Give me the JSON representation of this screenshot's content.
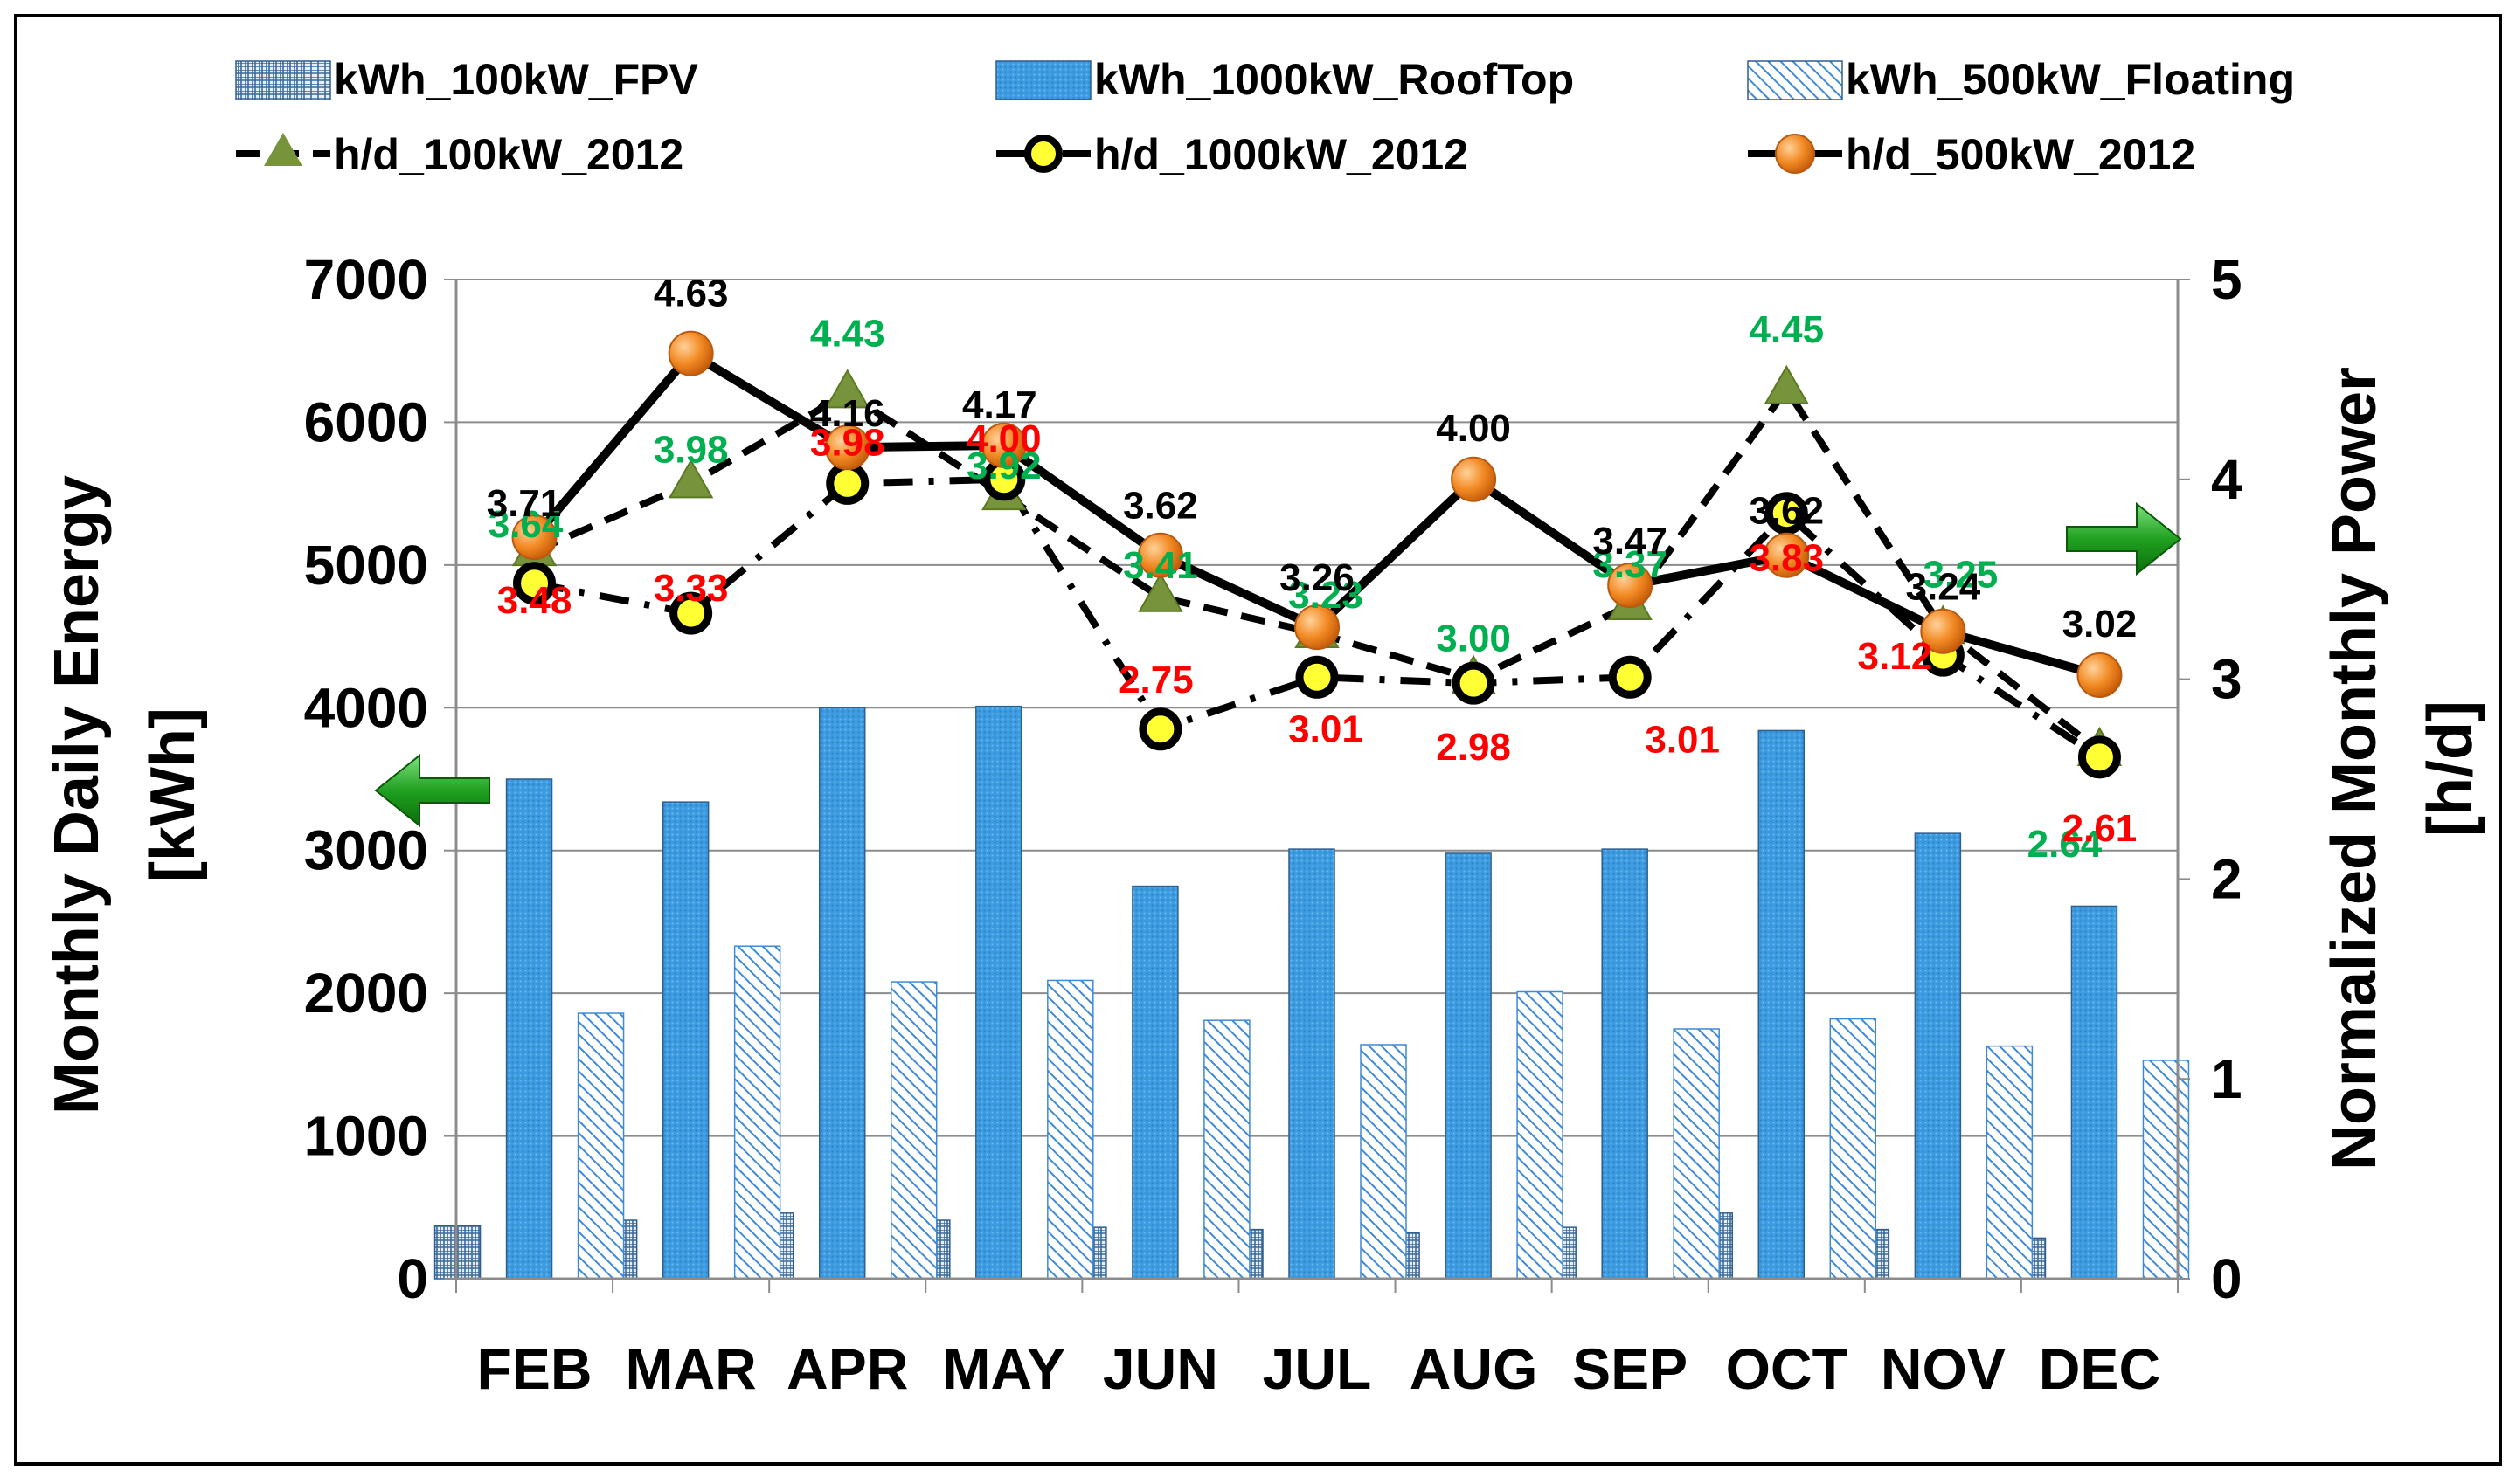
{
  "chart_data": {
    "type": "bar",
    "categories": [
      "FEB",
      "MAR",
      "APR",
      "MAY",
      "JUN",
      "JUL",
      "AUG",
      "SEP",
      "OCT",
      "NOV",
      "DEC"
    ],
    "ylabel_left_line1": "Monthly Daily Energy",
    "ylabel_left_line2": "[kWh]",
    "ylabel_right_line1": "Normalized Monthly Power",
    "ylabel_right_line2": "[h/d]",
    "ylim_left": [
      0,
      7000
    ],
    "ylim_right": [
      0,
      5
    ],
    "yticks_left": [
      "0",
      "1000",
      "2000",
      "3000",
      "4000",
      "5000",
      "6000",
      "7000"
    ],
    "yticks_right": [
      "0",
      "1",
      "2",
      "3",
      "4",
      "5"
    ],
    "grid": true,
    "legend_position": "top",
    "bar_series": [
      {
        "name": "kWh_100kW_FPV",
        "pattern": "grid",
        "color": "#4a7ba8",
        "values": [
          370,
          410,
          460,
          410,
          360,
          345,
          320,
          360,
          460,
          345,
          285
        ]
      },
      {
        "name": "kWh_1000kW_RoofTop",
        "pattern": "dots",
        "color": "#3a9ad9",
        "values": [
          3500,
          3340,
          4000,
          4010,
          2750,
          3010,
          2980,
          3010,
          3840,
          3120,
          2610
        ]
      },
      {
        "name": "kWh_500kW_Floating",
        "pattern": "diagonal",
        "color": "#4a90d9",
        "values": [
          1860,
          2330,
          2080,
          2090,
          1810,
          1640,
          2010,
          1750,
          1820,
          1630,
          1530
        ]
      }
    ],
    "line_series": [
      {
        "name": "h/d_100kW_2012",
        "style": "dashed",
        "marker": "triangle",
        "color": "#76933c",
        "label_color": "#00b050",
        "values": [
          3.64,
          3.98,
          4.43,
          3.92,
          3.41,
          3.23,
          3.0,
          3.37,
          4.45,
          3.25,
          2.64
        ],
        "labels": [
          "3.64",
          "3.98",
          "4.43",
          "3.92",
          "3.41",
          "3.23",
          "3.00",
          "3.37",
          "4.45",
          "3.25",
          "2.64"
        ]
      },
      {
        "name": "h/d_1000kW_2012",
        "style": "dashdot",
        "marker": "circle-yellow",
        "color": "#000000",
        "label_color": "#ff0000",
        "values": [
          3.48,
          3.33,
          3.98,
          4.0,
          2.75,
          3.01,
          2.98,
          3.01,
          3.83,
          3.12,
          2.61
        ],
        "labels": [
          "3.48",
          "3.33",
          "3.98",
          "4.00",
          "2.75",
          "3.01",
          "2.98",
          "3.01",
          "3.83",
          "3.12",
          "2.61"
        ]
      },
      {
        "name": "h/d_500kW_2012",
        "style": "solid",
        "marker": "circle-orange",
        "color": "#000000",
        "label_color": "#000000",
        "values": [
          3.71,
          4.63,
          4.16,
          4.17,
          3.62,
          3.26,
          4.0,
          3.47,
          3.62,
          3.24,
          3.02
        ],
        "labels": [
          "3.71",
          "4.63",
          "4.16",
          "4.17",
          "3.62",
          "3.26",
          "4.00",
          "3.47",
          "3.62",
          "3.24",
          "3.02"
        ]
      }
    ],
    "arrows": [
      {
        "name": "left-axis-arrow",
        "direction": "left",
        "color": "#1faa1f"
      },
      {
        "name": "right-axis-arrow",
        "direction": "right",
        "color": "#1faa1f"
      }
    ]
  }
}
